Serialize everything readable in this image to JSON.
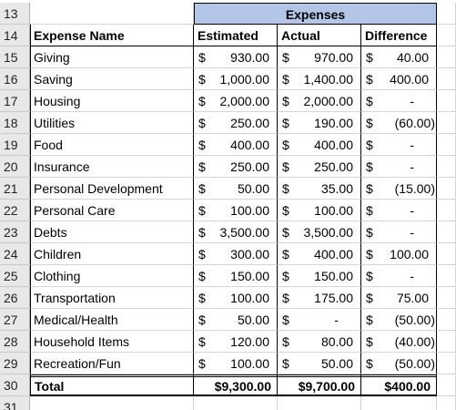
{
  "header": {
    "title": "Expenses"
  },
  "row_numbers": [
    "13",
    "14",
    "15",
    "16",
    "17",
    "18",
    "19",
    "20",
    "21",
    "22",
    "23",
    "24",
    "25",
    "26",
    "27",
    "28",
    "29",
    "30",
    "31"
  ],
  "columns": [
    "Expense Name",
    "Estimated",
    "Actual",
    "Difference"
  ],
  "rows": [
    [
      "Giving",
      [
        "$",
        "930.00"
      ],
      [
        "$",
        "970.00"
      ],
      [
        "$",
        "40.00"
      ]
    ],
    [
      "Saving",
      [
        "$",
        "1,000.00"
      ],
      [
        "$",
        "1,400.00"
      ],
      [
        "$",
        "400.00"
      ]
    ],
    [
      "Housing",
      [
        "$",
        "2,000.00"
      ],
      [
        "$",
        "2,000.00"
      ],
      [
        "$",
        "-"
      ]
    ],
    [
      "Utilities",
      [
        "$",
        "250.00"
      ],
      [
        "$",
        "190.00"
      ],
      [
        "$",
        "(60.00)"
      ]
    ],
    [
      "Food",
      [
        "$",
        "400.00"
      ],
      [
        "$",
        "400.00"
      ],
      [
        "$",
        "-"
      ]
    ],
    [
      "Insurance",
      [
        "$",
        "250.00"
      ],
      [
        "$",
        "250.00"
      ],
      [
        "$",
        "-"
      ]
    ],
    [
      "Personal Development",
      [
        "$",
        "50.00"
      ],
      [
        "$",
        "35.00"
      ],
      [
        "$",
        "(15.00)"
      ]
    ],
    [
      "Personal Care",
      [
        "$",
        "100.00"
      ],
      [
        "$",
        "100.00"
      ],
      [
        "$",
        "-"
      ]
    ],
    [
      "Debts",
      [
        "$",
        "3,500.00"
      ],
      [
        "$",
        "3,500.00"
      ],
      [
        "$",
        "-"
      ]
    ],
    [
      "Children",
      [
        "$",
        "300.00"
      ],
      [
        "$",
        "400.00"
      ],
      [
        "$",
        "100.00"
      ]
    ],
    [
      "Clothing",
      [
        "$",
        "150.00"
      ],
      [
        "$",
        "150.00"
      ],
      [
        "$",
        "-"
      ]
    ],
    [
      "Transportation",
      [
        "$",
        "100.00"
      ],
      [
        "$",
        "175.00"
      ],
      [
        "$",
        "75.00"
      ]
    ],
    [
      "Medical/Health",
      [
        "$",
        "50.00"
      ],
      [
        "$",
        "-"
      ],
      [
        "$",
        "(50.00)"
      ]
    ],
    [
      "Household Items",
      [
        "$",
        "120.00"
      ],
      [
        "$",
        "80.00"
      ],
      [
        "$",
        "(40.00)"
      ]
    ],
    [
      "Recreation/Fun",
      [
        "$",
        "100.00"
      ],
      [
        "$",
        "50.00"
      ],
      [
        "$",
        "(50.00)"
      ]
    ]
  ],
  "total": [
    "Total",
    "$9,300.00",
    "$9,700.00",
    "$400.00"
  ]
}
